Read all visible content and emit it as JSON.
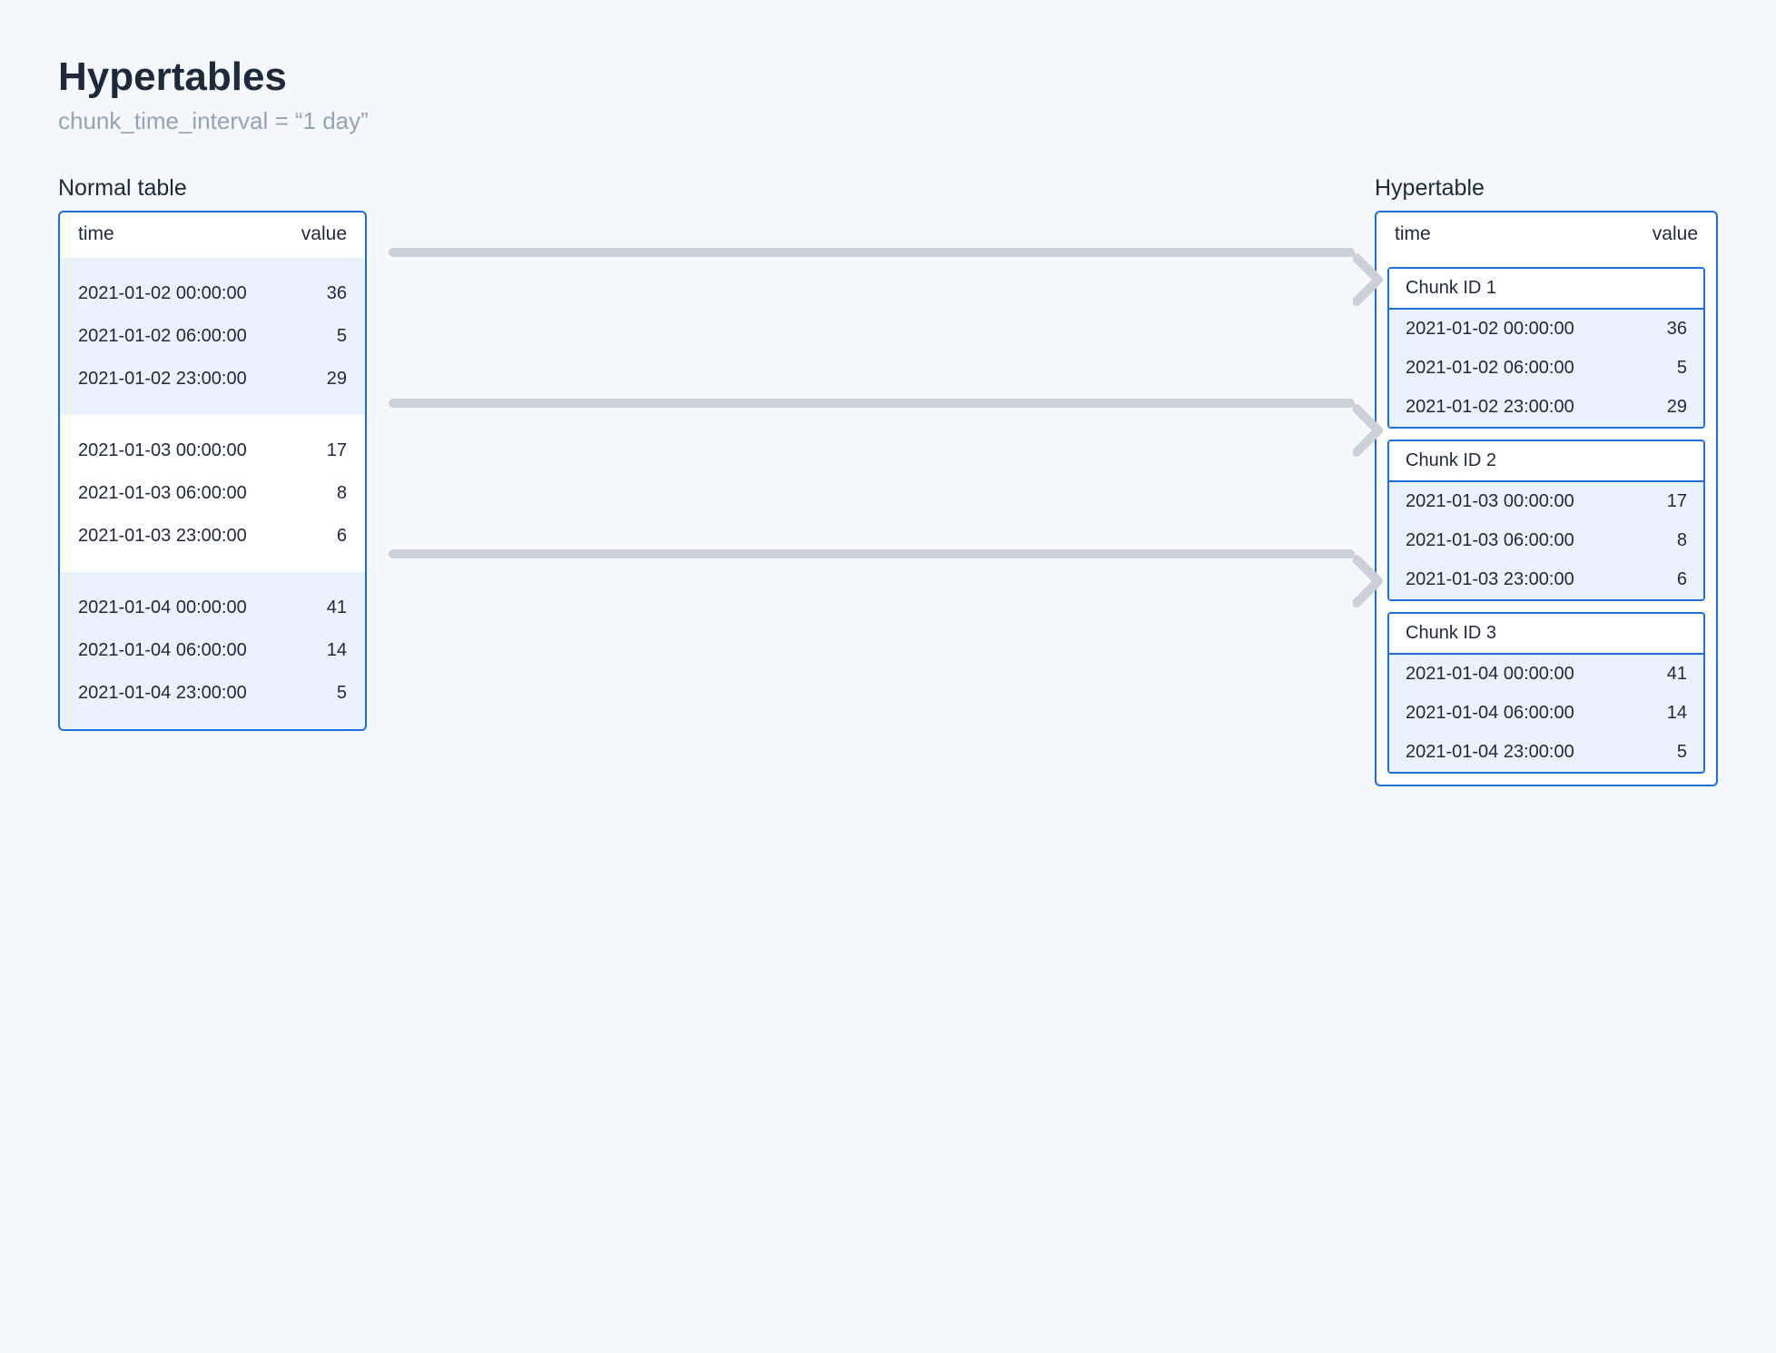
{
  "title": "Hypertables",
  "subtitle": "chunk_time_interval = “1 day”",
  "colors": {
    "background": "#f5f8fc",
    "panel_border": "#1d6fdc",
    "shade_bg": "#e9f2fd",
    "text_primary": "#1e293b",
    "text_muted": "#94a3b8",
    "arrow": "#cbd1d9"
  },
  "normal_table": {
    "label": "Normal table",
    "columns": {
      "time": "time",
      "value": "value"
    },
    "groups": [
      {
        "shaded": true,
        "rows": [
          {
            "time": "2021-01-02 00:00:00",
            "value": 36
          },
          {
            "time": "2021-01-02 06:00:00",
            "value": 5
          },
          {
            "time": "2021-01-02 23:00:00",
            "value": 29
          }
        ]
      },
      {
        "shaded": false,
        "rows": [
          {
            "time": "2021-01-03 00:00:00",
            "value": 17
          },
          {
            "time": "2021-01-03 06:00:00",
            "value": 8
          },
          {
            "time": "2021-01-03 23:00:00",
            "value": 6
          }
        ]
      },
      {
        "shaded": true,
        "rows": [
          {
            "time": "2021-01-04 00:00:00",
            "value": 41
          },
          {
            "time": "2021-01-04 06:00:00",
            "value": 14
          },
          {
            "time": "2021-01-04 23:00:00",
            "value": 5
          }
        ]
      }
    ]
  },
  "hypertable": {
    "label": "Hypertable",
    "columns": {
      "time": "time",
      "value": "value"
    },
    "chunks": [
      {
        "header": "Chunk ID 1",
        "rows": [
          {
            "time": "2021-01-02 00:00:00",
            "value": 36
          },
          {
            "time": "2021-01-02 06:00:00",
            "value": 5
          },
          {
            "time": "2021-01-02 23:00:00",
            "value": 29
          }
        ]
      },
      {
        "header": "Chunk ID 2",
        "rows": [
          {
            "time": "2021-01-03 00:00:00",
            "value": 17
          },
          {
            "time": "2021-01-03 06:00:00",
            "value": 8
          },
          {
            "time": "2021-01-03 23:00:00",
            "value": 6
          }
        ]
      },
      {
        "header": "Chunk ID 3",
        "rows": [
          {
            "time": "2021-01-04 00:00:00",
            "value": 41
          },
          {
            "time": "2021-01-04 06:00:00",
            "value": 14
          },
          {
            "time": "2021-01-04 23:00:00",
            "value": 5
          }
        ]
      }
    ]
  },
  "arrows": {
    "count": 3
  }
}
